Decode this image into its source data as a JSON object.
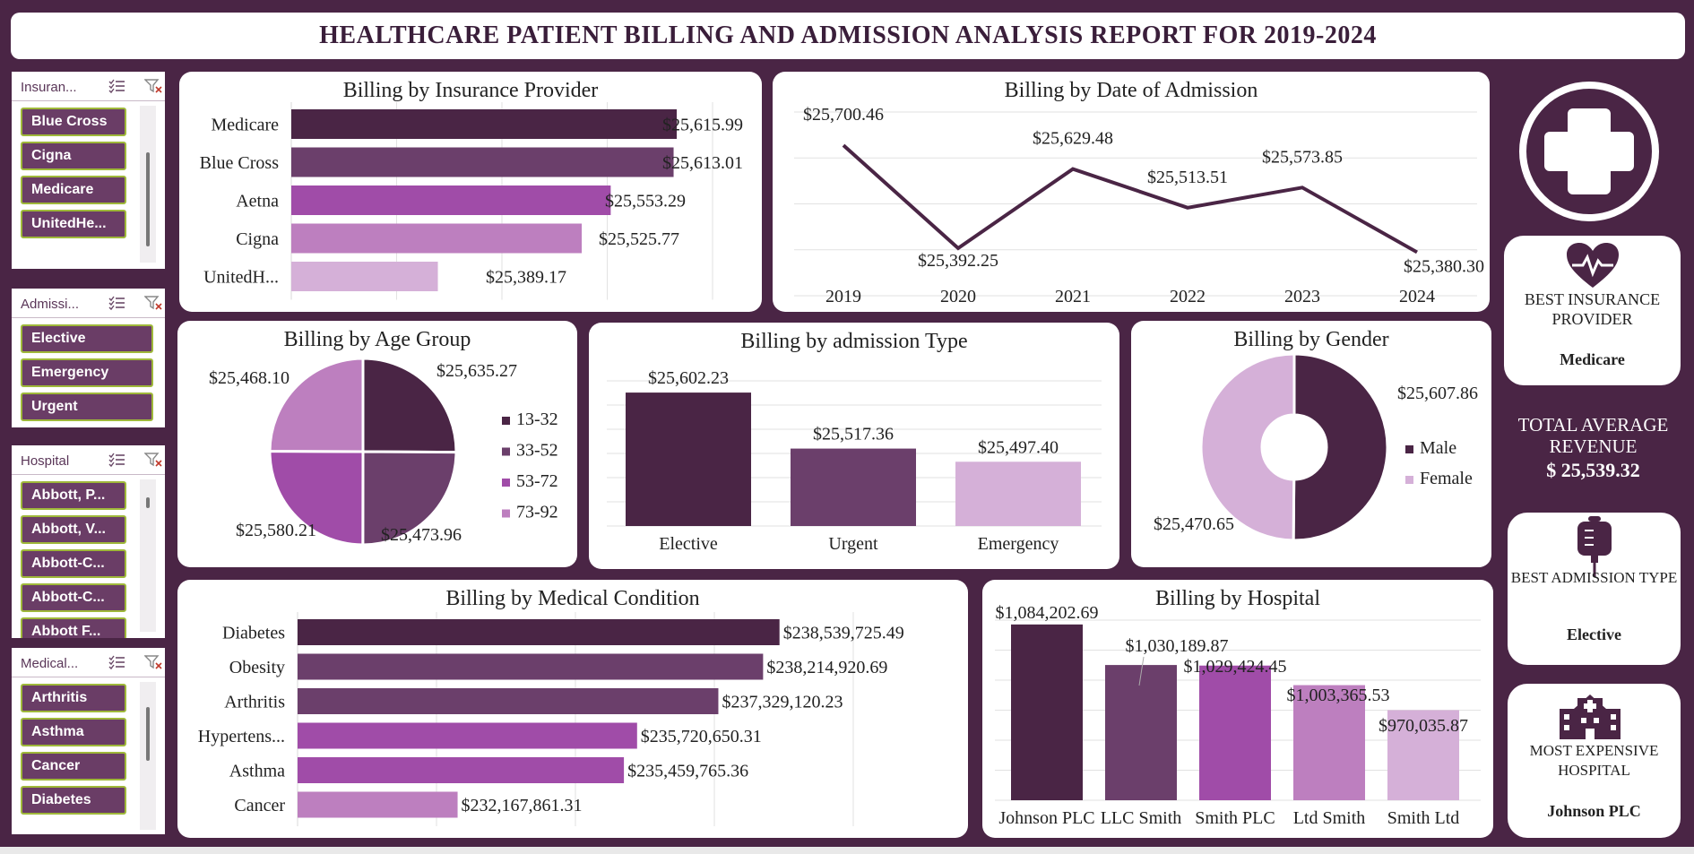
{
  "header": {
    "title": "HEALTHCARE PATIENT BILLING AND ADMISSION ANALYSIS REPORT FOR 2019-2024"
  },
  "colors": {
    "frame": "#4a2545",
    "c1": "#4a2545",
    "c2": "#6b3f6b",
    "c3": "#a04ca8",
    "c4": "#bd7fbf",
    "c5": "#d5b0d8"
  },
  "slicers": {
    "insurance": {
      "title": "Insuran...",
      "items": [
        "Blue Cross",
        "Cigna",
        "Medicare",
        "UnitedHe..."
      ]
    },
    "admission": {
      "title": "Admissi...",
      "items": [
        "Elective",
        "Emergency",
        "Urgent"
      ]
    },
    "hospital": {
      "title": "Hospital",
      "items": [
        "Abbott, P...",
        "Abbott, V...",
        "Abbott-C...",
        "Abbott-C...",
        "Abbott F..."
      ]
    },
    "medical": {
      "title": "Medical...",
      "items": [
        "Arthritis",
        "Asthma",
        "Cancer",
        "Diabetes"
      ]
    },
    "icons": [
      "multi-select-icon",
      "clear-filter-icon"
    ]
  },
  "kpis": {
    "insurance": {
      "label": "BEST INSURANCE PROVIDER",
      "value": "Medicare",
      "icon": "heart-pulse-icon"
    },
    "total": {
      "label": "TOTAL AVERAGE REVENUE",
      "value": "$ 25,539.32"
    },
    "admission": {
      "label": "BEST ADMISSION TYPE",
      "value": "Elective",
      "icon": "iv-bag-icon"
    },
    "hospital": {
      "label": "MOST EXPENSIVE HOSPITAL",
      "value": "Johnson PLC",
      "icon": "hospital-icon"
    },
    "logo": "medical-cross-icon"
  },
  "chart_data": [
    {
      "id": "insurance",
      "type": "bar",
      "orientation": "horizontal",
      "title": "Billing  by Insurance Provider",
      "categories": [
        "Medicare",
        "Blue Cross",
        "Aetna",
        "Cigna",
        "UnitedH..."
      ],
      "values": [
        25615.99,
        25613.01,
        25553.29,
        25525.77,
        25389.17
      ],
      "labels": [
        "$25,615.99",
        "$25,613.01",
        "$25,553.29",
        "$25,525.77",
        "$25,389.17"
      ],
      "xlim": [
        25250,
        25650
      ],
      "grid": true,
      "legend": "none"
    },
    {
      "id": "date",
      "type": "line",
      "title": "Billing  by Date of Admission",
      "x": [
        "2019",
        "2020",
        "2021",
        "2022",
        "2023",
        "2024"
      ],
      "values": [
        25700.46,
        25392.25,
        25629.48,
        25513.51,
        25573.85,
        25380.3
      ],
      "labels": [
        "$25,700.46",
        "$25,392.25",
        "$25,629.48",
        "$25,513.51",
        "$25,573.85",
        "$25,380.30"
      ],
      "ylim": [
        25250,
        25800
      ],
      "grid": true,
      "legend": "none"
    },
    {
      "id": "age",
      "type": "pie",
      "title": "Billing  by Age Group",
      "categories": [
        "13-32",
        "33-52",
        "53-72",
        "73-92"
      ],
      "values": [
        25635.27,
        25473.96,
        25580.21,
        25468.1
      ],
      "labels": [
        "$25,635.27",
        "$25,473.96",
        "$25,580.21",
        "$25,468.10"
      ],
      "legend": "right"
    },
    {
      "id": "admission",
      "type": "bar",
      "title": "Billing  by admission Type",
      "categories": [
        "Elective",
        "Urgent",
        "Emergency"
      ],
      "values": [
        25602.23,
        25517.36,
        25497.4
      ],
      "labels": [
        "$25,602.23",
        "$25,517.36",
        "$25,497.40"
      ],
      "ylim": [
        25400,
        25620
      ],
      "grid": true,
      "legend": "none"
    },
    {
      "id": "gender",
      "type": "pie",
      "subtype": "donut",
      "title": "Billing  by Gender",
      "categories": [
        "Male",
        "Female"
      ],
      "values": [
        25607.86,
        25470.65
      ],
      "labels": [
        "$25,607.86",
        "$25,470.65"
      ],
      "legend": "right"
    },
    {
      "id": "medical",
      "type": "bar",
      "orientation": "horizontal",
      "title": "Billing  by Medical Condition",
      "categories": [
        "Diabetes",
        "Obesity",
        "Arthritis",
        "Hypertens...",
        "Asthma",
        "Cancer"
      ],
      "values": [
        238539725.49,
        238214920.69,
        237329120.23,
        235720650.31,
        235459765.36,
        232167861.31
      ],
      "labels": [
        "$238,539,725.49",
        "$238,214,920.69",
        "$237,329,120.23",
        "$235,720,650.31",
        "$235,459,765.36",
        "$232,167,861.31"
      ],
      "xlim": [
        229000000,
        240000000
      ],
      "grid": true,
      "legend": "none"
    },
    {
      "id": "hospital",
      "type": "bar",
      "title": "Billing  by Hospital",
      "categories": [
        "Johnson PLC",
        "LLC Smith",
        "Smith PLC",
        "Ltd Smith",
        "Smith Ltd"
      ],
      "values": [
        1084202.69,
        1030189.87,
        1029424.45,
        1003365.53,
        970035.87
      ],
      "labels": [
        "$1,084,202.69",
        "$1,030,189.87",
        "$1,029,424.45",
        "$1,003,365.53",
        "$970,035.87"
      ],
      "ylim": [
        850000,
        1090000
      ],
      "grid": true,
      "legend": "none"
    }
  ]
}
